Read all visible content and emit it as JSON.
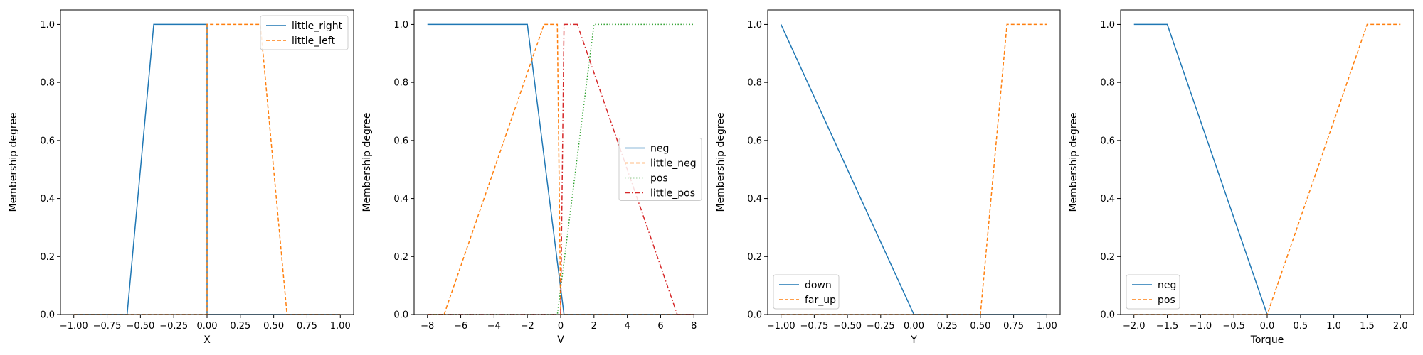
{
  "chart_data": [
    {
      "type": "line",
      "xlabel": "X",
      "ylabel": "Membership degree",
      "xlim": [
        -1.1,
        1.1
      ],
      "ylim": [
        0,
        1.05
      ],
      "xticks": [
        -1.0,
        -0.75,
        -0.5,
        -0.25,
        0.0,
        0.25,
        0.5,
        0.75,
        1.0
      ],
      "xtick_labels": [
        "−1.00",
        "−0.75",
        "−0.50",
        "−0.25",
        "0.00",
        "0.25",
        "0.50",
        "0.75",
        "1.00"
      ],
      "yticks": [
        0.0,
        0.2,
        0.4,
        0.6,
        0.8,
        1.0
      ],
      "ytick_labels": [
        "0.0",
        "0.2",
        "0.4",
        "0.6",
        "0.8",
        "1.0"
      ],
      "legend_position": "top-right",
      "series": [
        {
          "name": "little_right",
          "color": "#1f77b4",
          "style": "solid",
          "x": [
            -1.0,
            -0.6,
            -0.4,
            0.0,
            0.0,
            1.0
          ],
          "y": [
            0,
            0,
            1,
            1,
            0,
            0
          ]
        },
        {
          "name": "little_left",
          "color": "#ff7f0e",
          "style": "dashed",
          "x": [
            -1.0,
            0.0,
            0.0,
            0.4,
            0.6,
            1.0
          ],
          "y": [
            0,
            0,
            1,
            1,
            0,
            0
          ]
        }
      ]
    },
    {
      "type": "line",
      "xlabel": "V",
      "ylabel": "Membership degree",
      "xlim": [
        -8.8,
        8.8
      ],
      "ylim": [
        0,
        1.05
      ],
      "xticks": [
        -8,
        -6,
        -4,
        -2,
        0,
        2,
        4,
        6,
        8
      ],
      "xtick_labels": [
        "−8",
        "−6",
        "−4",
        "−2",
        "0",
        "2",
        "4",
        "6",
        "8"
      ],
      "yticks": [
        0.0,
        0.2,
        0.4,
        0.6,
        0.8,
        1.0
      ],
      "ytick_labels": [
        "0.0",
        "0.2",
        "0.4",
        "0.6",
        "0.8",
        "1.0"
      ],
      "legend_position": "center-right",
      "series": [
        {
          "name": "neg",
          "color": "#1f77b4",
          "style": "solid",
          "x": [
            -8,
            -2,
            0.2,
            8
          ],
          "y": [
            1,
            1,
            0,
            0
          ]
        },
        {
          "name": "little_neg",
          "color": "#ff7f0e",
          "style": "dashed",
          "x": [
            -8,
            -7,
            -1,
            -0.2,
            0,
            8
          ],
          "y": [
            0,
            0,
            1,
            1,
            0,
            0
          ]
        },
        {
          "name": "pos",
          "color": "#2ca02c",
          "style": "dotted",
          "x": [
            -8,
            -0.2,
            2,
            8
          ],
          "y": [
            0,
            0,
            1,
            1
          ]
        },
        {
          "name": "little_pos",
          "color": "#d62728",
          "style": "dashdot",
          "x": [
            -8,
            0,
            0.2,
            1,
            7,
            8
          ],
          "y": [
            0,
            0,
            1,
            1,
            0,
            0
          ]
        }
      ]
    },
    {
      "type": "line",
      "xlabel": "Y",
      "ylabel": "Membership degree",
      "xlim": [
        -1.1,
        1.1
      ],
      "ylim": [
        0,
        1.05
      ],
      "xticks": [
        -1.0,
        -0.75,
        -0.5,
        -0.25,
        0.0,
        0.25,
        0.5,
        0.75,
        1.0
      ],
      "xtick_labels": [
        "−1.00",
        "−0.75",
        "−0.50",
        "−0.25",
        "0.00",
        "0.25",
        "0.50",
        "0.75",
        "1.00"
      ],
      "yticks": [
        0.0,
        0.2,
        0.4,
        0.6,
        0.8,
        1.0
      ],
      "ytick_labels": [
        "0.0",
        "0.2",
        "0.4",
        "0.6",
        "0.8",
        "1.0"
      ],
      "legend_position": "bottom-left",
      "series": [
        {
          "name": "down",
          "color": "#1f77b4",
          "style": "solid",
          "x": [
            -1.0,
            0.0,
            1.0
          ],
          "y": [
            1,
            0,
            0
          ]
        },
        {
          "name": "far_up",
          "color": "#ff7f0e",
          "style": "dashed",
          "x": [
            -1.0,
            0.5,
            0.7,
            1.0
          ],
          "y": [
            0,
            0,
            1,
            1
          ]
        }
      ]
    },
    {
      "type": "line",
      "xlabel": "Torque",
      "ylabel": "Membership degree",
      "xlim": [
        -2.2,
        2.2
      ],
      "ylim": [
        0,
        1.05
      ],
      "xticks": [
        -2.0,
        -1.5,
        -1.0,
        -0.5,
        0.0,
        0.5,
        1.0,
        1.5,
        2.0
      ],
      "xtick_labels": [
        "−2.0",
        "−1.5",
        "−1.0",
        "−0.5",
        "0.0",
        "0.5",
        "1.0",
        "1.5",
        "2.0"
      ],
      "yticks": [
        0.0,
        0.2,
        0.4,
        0.6,
        0.8,
        1.0
      ],
      "ytick_labels": [
        "0.0",
        "0.2",
        "0.4",
        "0.6",
        "0.8",
        "1.0"
      ],
      "legend_position": "bottom-left",
      "series": [
        {
          "name": "neg",
          "color": "#1f77b4",
          "style": "solid",
          "x": [
            -2.0,
            -1.5,
            0.0,
            2.0
          ],
          "y": [
            1,
            1,
            0,
            0
          ]
        },
        {
          "name": "pos",
          "color": "#ff7f0e",
          "style": "dashed",
          "x": [
            -2.0,
            0.0,
            1.5,
            2.0
          ],
          "y": [
            0,
            0,
            1,
            1
          ]
        }
      ]
    }
  ]
}
